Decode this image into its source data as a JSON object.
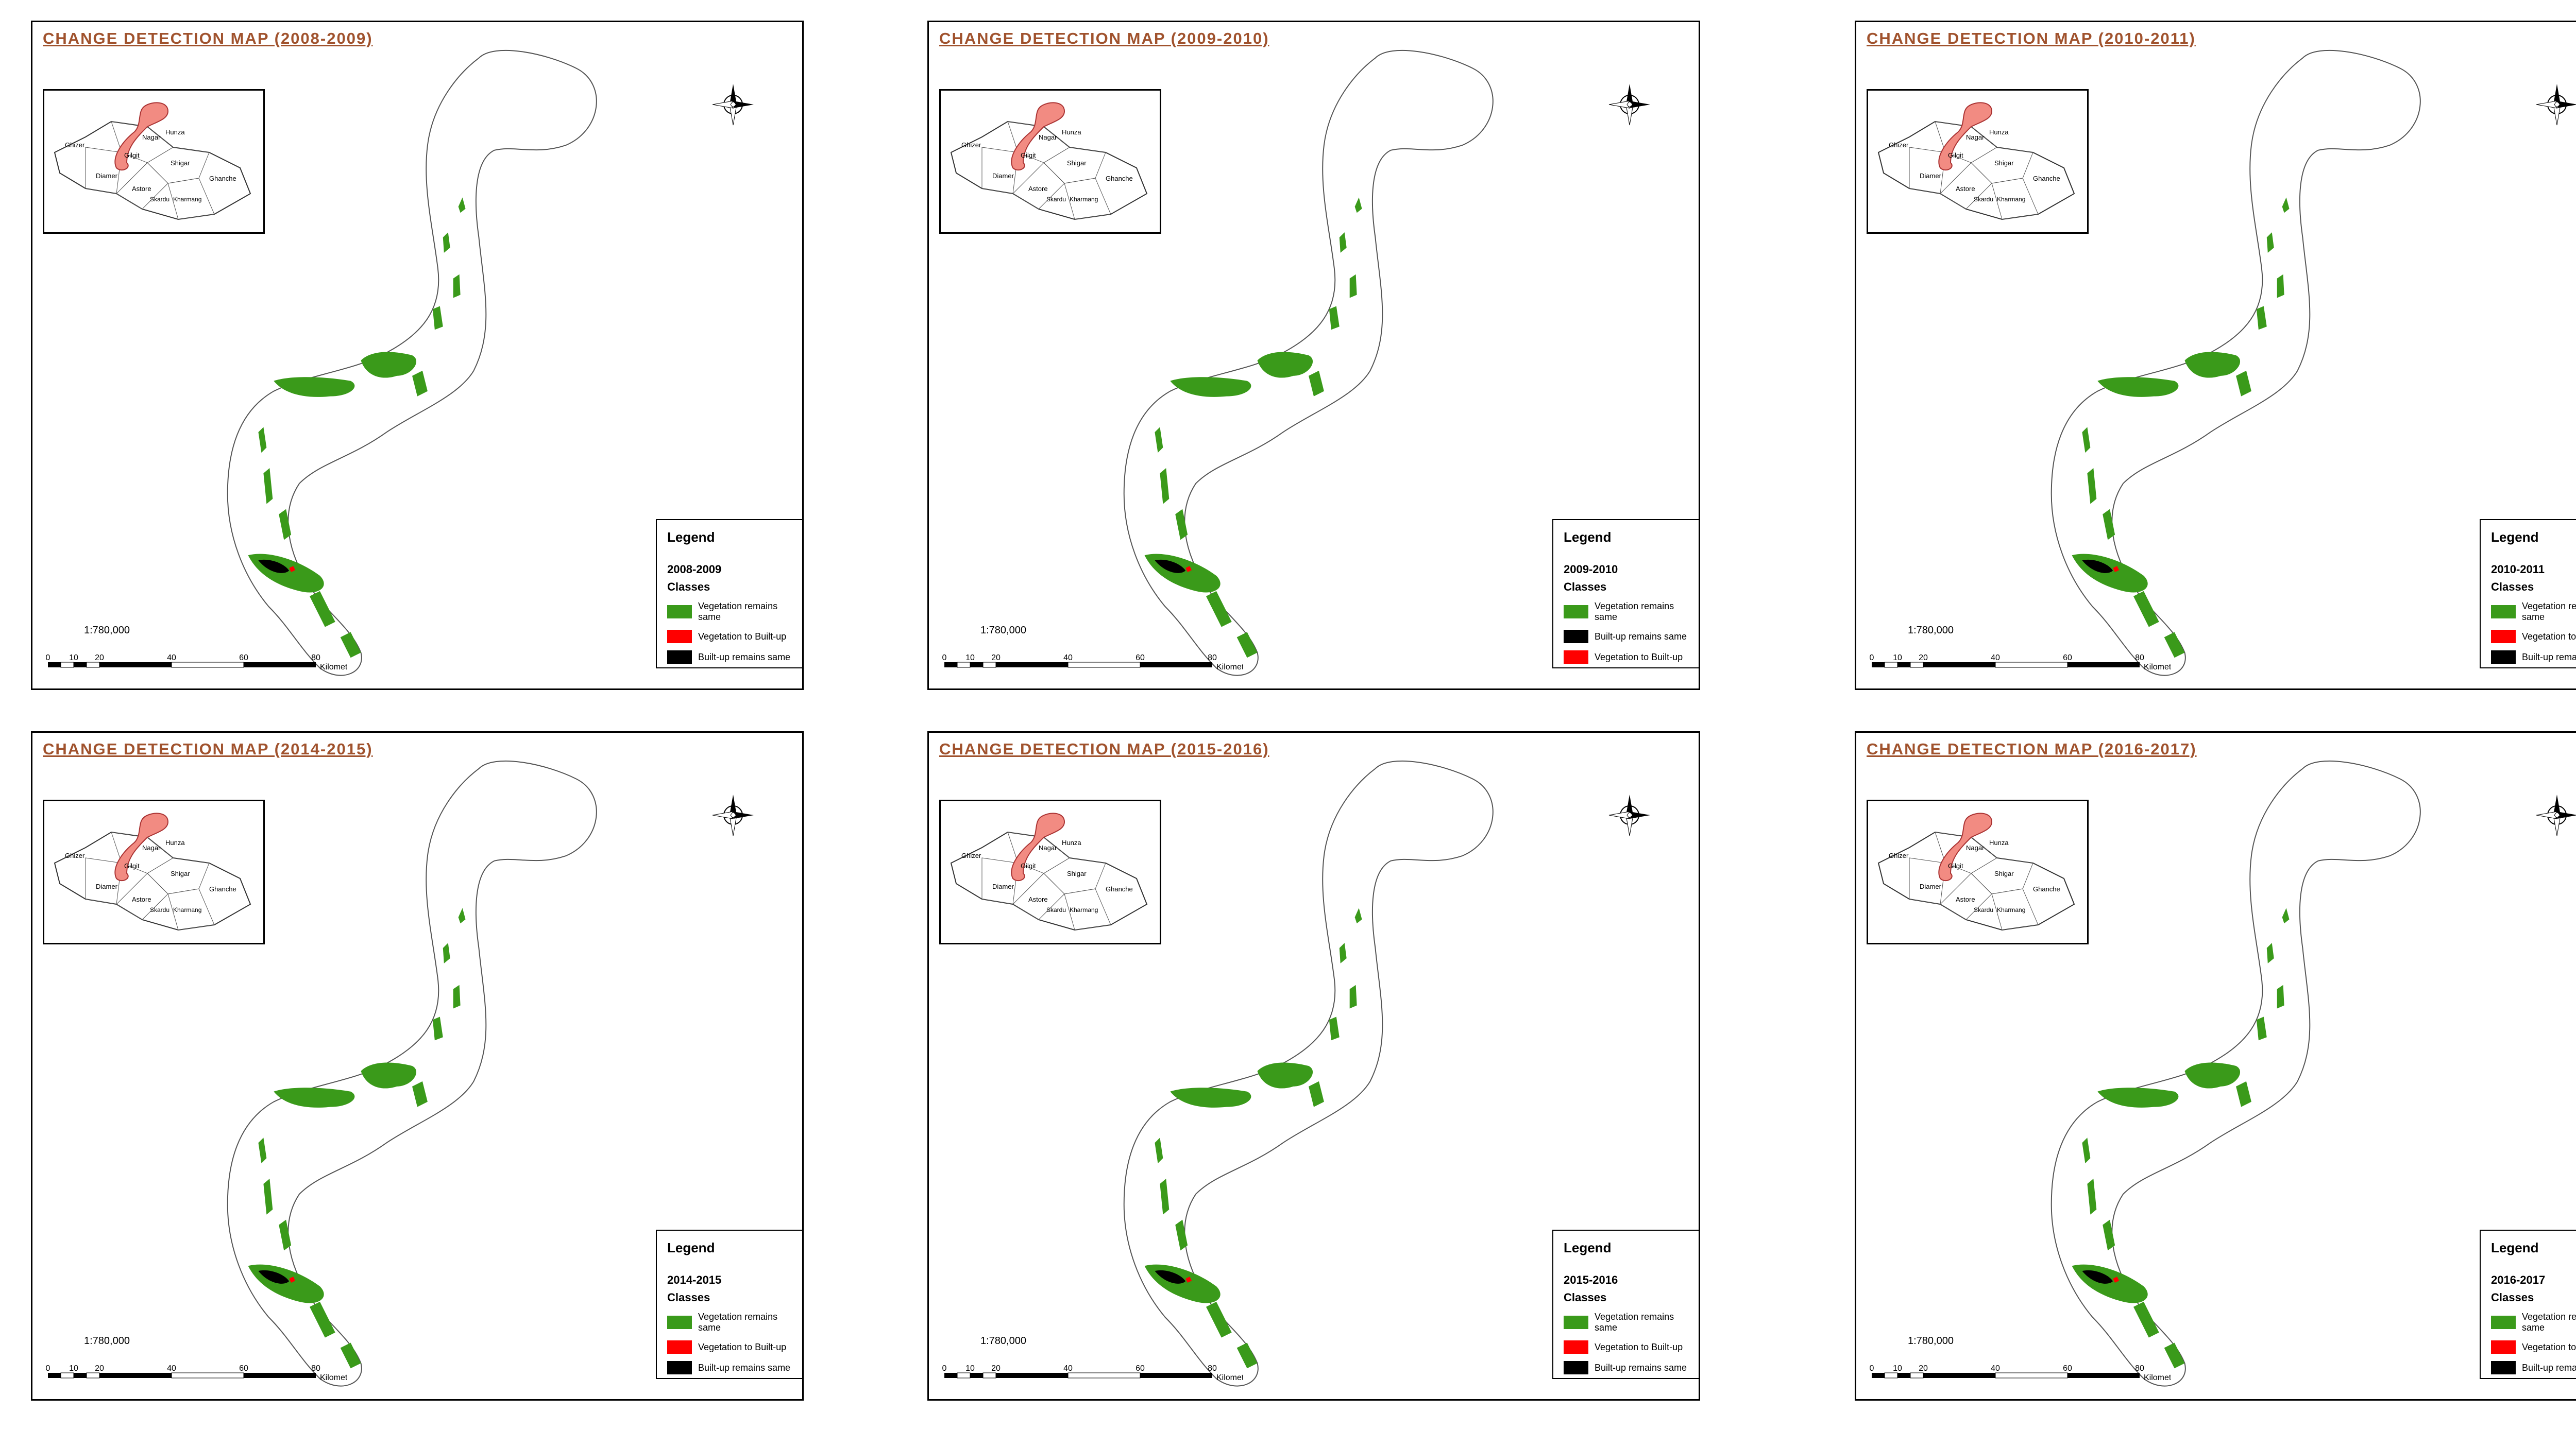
{
  "scale_text": "1:780,000",
  "scale_ticks": [
    "0",
    "10",
    "20",
    "40",
    "60",
    "80"
  ],
  "scale_unit": "Kilometers",
  "inset_labels": [
    "Ghizer",
    "Hunza",
    "Gilgit",
    "Nagar",
    "Diamer",
    "Shigar",
    "Astore",
    "Ghanche",
    "Skardu",
    "Kharmang"
  ],
  "class_colors": {
    "vegetation_remains_same": "#3a9a1a",
    "vegetation_to_builtup": "#ff0000",
    "builtup_remains_same": "#000000"
  },
  "maps": [
    {
      "title": "CHANGE DETECTION MAP (2008-2009)",
      "legend_title": "Legend",
      "period": "2008-2009",
      "classes_label": "Classes",
      "items": [
        {
          "label": "Vegetation remains same",
          "color": "#3a9a1a"
        },
        {
          "label": "Vegetation to Built-up",
          "color": "#ff0000"
        },
        {
          "label": "Built-up remains same",
          "color": "#000000"
        }
      ]
    },
    {
      "title": "CHANGE DETECTION MAP (2009-2010)",
      "legend_title": "Legend",
      "period": "2009-2010",
      "classes_label": "Classes",
      "items": [
        {
          "label": "Vegetation remains same",
          "color": "#3a9a1a"
        },
        {
          "label": "Built-up remains same",
          "color": "#000000"
        },
        {
          "label": "Vegetation to Built-up",
          "color": "#ff0000"
        }
      ]
    },
    {
      "title": "CHANGE DETECTION MAP (2010-2011)",
      "legend_title": "Legend",
      "period": "2010-2011",
      "classes_label": "Classes",
      "items": [
        {
          "label": "Vegetation remains same",
          "color": "#3a9a1a"
        },
        {
          "label": "Vegetation to Built-up",
          "color": "#ff0000"
        },
        {
          "label": "Built-up remains same",
          "color": "#000000"
        }
      ]
    },
    {
      "title": "CHANGE DETECTION MAP (2014-2015)",
      "legend_title": "Legend",
      "period": "2014-2015",
      "classes_label": "Classes",
      "items": [
        {
          "label": "Vegetation remains same",
          "color": "#3a9a1a"
        },
        {
          "label": "Vegetation to Built-up",
          "color": "#ff0000"
        },
        {
          "label": "Built-up remains same",
          "color": "#000000"
        }
      ]
    },
    {
      "title": "CHANGE DETECTION MAP (2015-2016)",
      "legend_title": "Legend",
      "period": "2015-2016",
      "classes_label": "Classes",
      "items": [
        {
          "label": "Vegetation remains same",
          "color": "#3a9a1a"
        },
        {
          "label": "Vegetation to Built-up",
          "color": "#ff0000"
        },
        {
          "label": "Built-up remains same",
          "color": "#000000"
        }
      ]
    },
    {
      "title": "CHANGE DETECTION MAP (2016-2017)",
      "legend_title": "Legend",
      "period": "2016-2017",
      "classes_label": "Classes",
      "items": [
        {
          "label": "Vegetation remains same",
          "color": "#3a9a1a"
        },
        {
          "label": "Vegetation to Built-up",
          "color": "#ff0000"
        },
        {
          "label": "Built-up remains same",
          "color": "#000000"
        }
      ]
    }
  ]
}
